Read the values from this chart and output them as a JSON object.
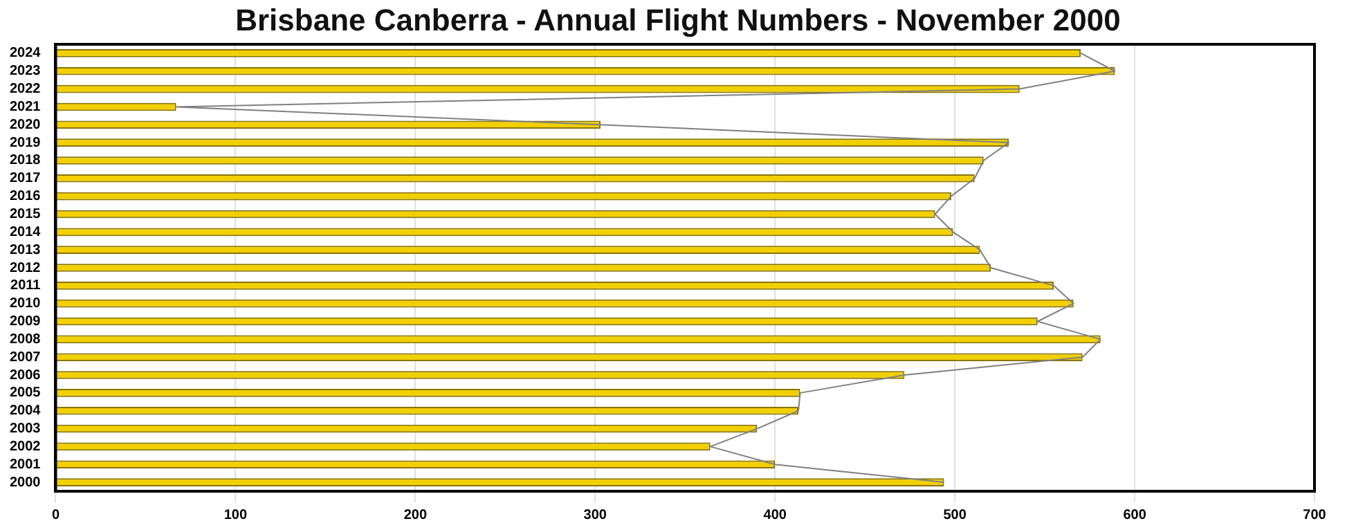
{
  "chart_data": {
    "type": "bar",
    "orientation": "horizontal",
    "title": "Brisbane Canberra - Annual Flight Numbers - November 2000",
    "categories": [
      "2024",
      "2023",
      "2022",
      "2021",
      "2020",
      "2019",
      "2018",
      "2017",
      "2016",
      "2015",
      "2014",
      "2013",
      "2012",
      "2011",
      "2010",
      "2009",
      "2008",
      "2007",
      "2006",
      "2005",
      "2004",
      "2003",
      "2002",
      "2001",
      "2000"
    ],
    "series": [
      {
        "color": "#f2d000",
        "values": [
          570,
          589,
          536,
          67,
          303,
          530,
          516,
          511,
          498,
          489,
          499,
          514,
          520,
          555,
          566,
          546,
          581,
          571,
          472,
          414,
          413,
          390,
          364,
          400,
          494
        ]
      },
      {
        "type": "line",
        "color": "#808080",
        "values": [
          570,
          589,
          536,
          67,
          303,
          530,
          516,
          511,
          498,
          489,
          499,
          514,
          520,
          555,
          566,
          546,
          581,
          571,
          472,
          414,
          413,
          390,
          364,
          400,
          494
        ]
      }
    ],
    "xlim": [
      0,
      700
    ],
    "xticks": [
      0,
      100,
      200,
      300,
      400,
      500,
      600,
      700
    ],
    "grid": "x",
    "legend": false,
    "marker": "none",
    "line_style": "solid"
  }
}
